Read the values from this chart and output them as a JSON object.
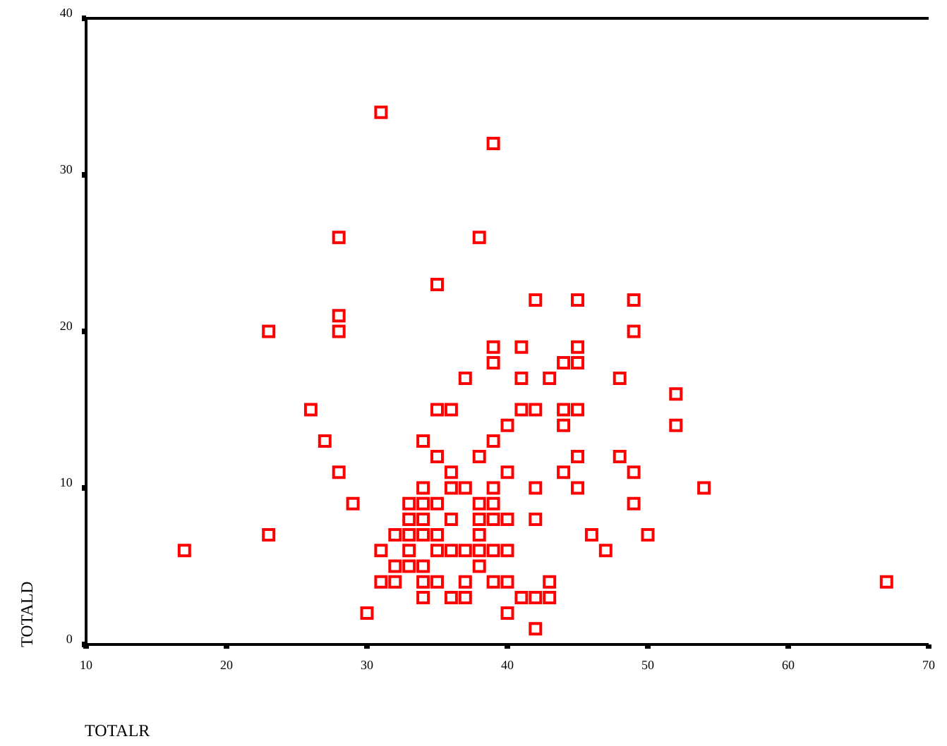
{
  "chart_data": {
    "type": "scatter",
    "xlabel": "TOTALR",
    "ylabel": "TOTALD",
    "xlim": [
      10,
      70
    ],
    "xticks": [
      10,
      20,
      30,
      40,
      50,
      60,
      70
    ],
    "ylim": [
      0,
      40
    ],
    "yticks": [
      0,
      10,
      20,
      30,
      40
    ],
    "marker": "square",
    "grid": false,
    "series": [
      {
        "color": "#ff0000",
        "x": [
          31,
          39,
          28,
          38,
          35,
          42,
          45,
          49,
          28,
          23,
          28,
          49,
          39,
          41,
          45,
          39,
          44,
          45,
          37,
          41,
          43,
          48,
          52,
          26,
          35,
          36,
          41,
          42,
          44,
          45,
          40,
          44,
          52,
          27,
          34,
          39,
          35,
          38,
          45,
          48,
          28,
          36,
          40,
          44,
          49,
          34,
          36,
          37,
          39,
          42,
          45,
          54,
          29,
          33,
          34,
          35,
          38,
          39,
          49,
          33,
          34,
          36,
          38,
          39,
          40,
          42,
          23,
          32,
          33,
          34,
          35,
          38,
          46,
          50,
          17,
          31,
          33,
          35,
          36,
          37,
          38,
          39,
          40,
          47,
          32,
          33,
          34,
          38,
          31,
          32,
          34,
          35,
          37,
          39,
          40,
          43,
          67,
          34,
          36,
          37,
          41,
          42,
          43,
          30,
          40,
          42
        ],
        "values": [
          34,
          32,
          26,
          26,
          23,
          22,
          22,
          22,
          21,
          20,
          20,
          20,
          19,
          19,
          19,
          18,
          18,
          18,
          17,
          17,
          17,
          17,
          16,
          15,
          15,
          15,
          15,
          15,
          15,
          15,
          14,
          14,
          14,
          13,
          13,
          13,
          12,
          12,
          12,
          12,
          11,
          11,
          11,
          11,
          11,
          10,
          10,
          10,
          10,
          10,
          10,
          10,
          9,
          9,
          9,
          9,
          9,
          9,
          9,
          8,
          8,
          8,
          8,
          8,
          8,
          8,
          7,
          7,
          7,
          7,
          7,
          7,
          7,
          7,
          6,
          6,
          6,
          6,
          6,
          6,
          6,
          6,
          6,
          6,
          5,
          5,
          5,
          5,
          4,
          4,
          4,
          4,
          4,
          4,
          4,
          4,
          4,
          3,
          3,
          3,
          3,
          3,
          3,
          2,
          2,
          1
        ]
      }
    ]
  }
}
